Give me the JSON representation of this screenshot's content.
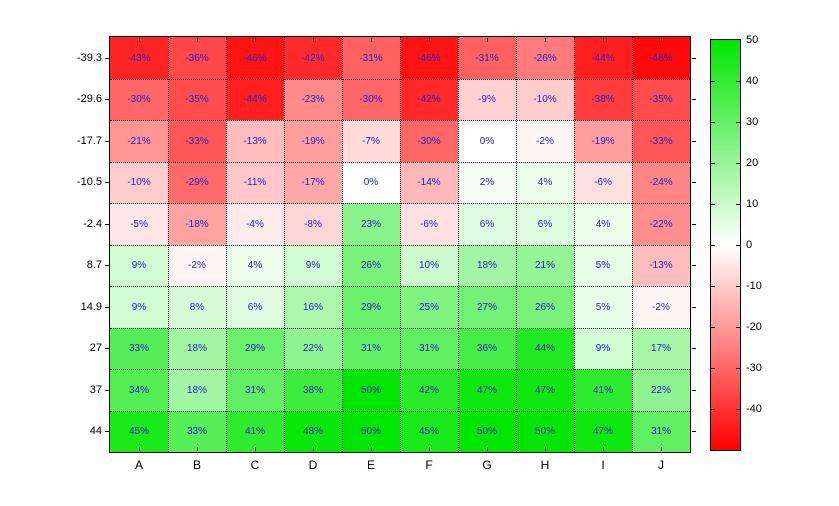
{
  "chart_data": {
    "type": "heatmap",
    "title": "",
    "xlabel": "",
    "ylabel": "",
    "columns": [
      "A",
      "B",
      "C",
      "D",
      "E",
      "F",
      "G",
      "H",
      "I",
      "J"
    ],
    "rows": [
      "-39.3",
      "-29.6",
      "-17.7",
      "-10.5",
      "-2.4",
      "8.7",
      "14.9",
      "27",
      "37",
      "44"
    ],
    "values": [
      [
        -43,
        -36,
        -46,
        -42,
        -31,
        -46,
        -31,
        -26,
        -44,
        -48
      ],
      [
        -30,
        -35,
        -44,
        -23,
        -30,
        -42,
        -9,
        -10,
        -38,
        -35
      ],
      [
        -21,
        -33,
        -13,
        -19,
        -7,
        -30,
        0,
        -2,
        -19,
        -33
      ],
      [
        -10,
        -29,
        -11,
        -17,
        0,
        -14,
        2,
        4,
        -6,
        -24
      ],
      [
        -5,
        -18,
        -4,
        -8,
        23,
        -6,
        6,
        6,
        4,
        -22
      ],
      [
        9,
        -2,
        4,
        9,
        26,
        10,
        18,
        21,
        5,
        -13
      ],
      [
        9,
        8,
        6,
        16,
        29,
        25,
        27,
        26,
        5,
        -2
      ],
      [
        33,
        18,
        29,
        22,
        31,
        31,
        36,
        44,
        9,
        17
      ],
      [
        34,
        18,
        31,
        38,
        50,
        42,
        47,
        47,
        41,
        22
      ],
      [
        45,
        33,
        41,
        48,
        50,
        45,
        50,
        50,
        47,
        31
      ]
    ],
    "cell_label_suffix": "%",
    "colorbar": {
      "min": -50,
      "max": 50,
      "tick_values": [
        50,
        40,
        30,
        20,
        10,
        0,
        -10,
        -20,
        -30,
        -40
      ]
    },
    "colors": {
      "positive_max": "#00e600",
      "zero": "#ffffff",
      "negative_max": "#ff0000",
      "cell_text": "#2222cc",
      "axis_text": "#000000",
      "grid": "#000000"
    },
    "grid": "dotted",
    "legend_position": "right-colorbar"
  }
}
